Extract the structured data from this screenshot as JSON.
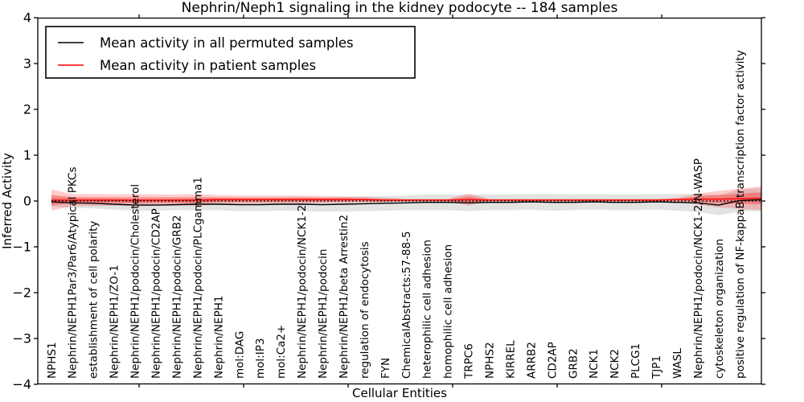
{
  "chart_data": {
    "type": "line",
    "title": "Nephrin/Neph1 signaling in the kidney podocyte -- 184 samples",
    "xlabel": "Cellular Entities",
    "ylabel": "Inferred Activity",
    "ylim": [
      -4,
      4
    ],
    "yticks": [
      -4,
      -3,
      -2,
      -1,
      0,
      1,
      2,
      3,
      4
    ],
    "grid": false,
    "legend_position": "upper-left",
    "legend": [
      "Mean activity in all permuted samples",
      "Mean activity in patient samples"
    ],
    "zero_line": {
      "value": 0,
      "style": "dotted",
      "color": "#000000"
    },
    "categories": [
      "NPHS1",
      "Nephrin/NEPH1Par3/Par6/Atypical PKCs",
      "establishment of cell polarity",
      "Nephrin/NEPH1/ZO-1",
      "Nephrin/NEPH1/podocin/Cholesterol",
      "Nephrin/NEPH1/podocin/CD2AP",
      "Nephrin/NEPH1/podocin/GRB2",
      "Nephrin/NEPH1/podocin/PLCgamma1",
      "Nephrin/NEPH1",
      "mol:DAG",
      "mol:IP3",
      "mol:Ca2+",
      "Nephrin/NEPH1/podocin/NCK1-2",
      "Nephrin/NEPH1/podocin",
      "Nephrin/NEPH1/beta Arrestin2",
      "regulation of endocytosis",
      "FYN",
      "ChemicalAbstracts:57-88-5",
      "heterophilic cell adhesion",
      "homophilic cell adhesion",
      "TRPC6",
      "NPHS2",
      "KIRREL",
      "ARRB2",
      "CD2AP",
      "GRB2",
      "NCK1",
      "NCK2",
      "PLCG1",
      "TJP1",
      "WASL",
      "Nephrin/NEPH1/podocin/NCK1-2/N-WASP",
      "cytoskeleton organization",
      "positive regulation of NF-kappaB transcription factor activity"
    ],
    "series": [
      {
        "name": "Mean activity in all permuted samples",
        "color": "#000000",
        "band_color": "#999999",
        "band_opacity": 0.28,
        "inner_band_scale": 0,
        "values": [
          -0.02,
          -0.04,
          -0.05,
          -0.07,
          -0.09,
          -0.09,
          -0.08,
          -0.07,
          -0.07,
          -0.08,
          -0.08,
          -0.07,
          -0.07,
          -0.08,
          -0.07,
          -0.06,
          -0.05,
          -0.04,
          -0.03,
          -0.03,
          -0.04,
          -0.03,
          -0.03,
          -0.02,
          -0.03,
          -0.03,
          -0.02,
          -0.03,
          -0.03,
          -0.02,
          -0.03,
          -0.04,
          -0.09,
          0.01
        ],
        "band_halfwidth": [
          0.1,
          0.11,
          0.11,
          0.12,
          0.12,
          0.12,
          0.12,
          0.13,
          0.13,
          0.14,
          0.14,
          0.14,
          0.15,
          0.15,
          0.16,
          0.16,
          0.16,
          0.16,
          0.17,
          0.17,
          0.18,
          0.17,
          0.17,
          0.17,
          0.18,
          0.17,
          0.17,
          0.17,
          0.17,
          0.17,
          0.18,
          0.2,
          0.22,
          0.24
        ],
        "edge_extension": {
          "value": 0.03,
          "std": 0.25
        }
      },
      {
        "name": "Mean activity in patient samples",
        "color": "#ff0000",
        "band_color": "#ff0000",
        "band_opacity": 0.2,
        "inner_band_scale": 0.5,
        "inner_band_opacity": 0.3,
        "values": [
          0.02,
          0.02,
          0.02,
          0.02,
          0.02,
          0.02,
          0.02,
          0.02,
          0.03,
          0.03,
          0.03,
          0.03,
          0.03,
          0.03,
          0.03,
          0.03,
          0.02,
          0.02,
          0.02,
          0.02,
          0.03,
          0.02,
          0.02,
          0.02,
          0.02,
          0.02,
          0.02,
          0.02,
          0.02,
          0.02,
          0.03,
          0.04,
          0.04,
          0.05
        ],
        "band_halfwidth": [
          0.23,
          0.13,
          0.13,
          0.12,
          0.13,
          0.12,
          0.12,
          0.13,
          0.1,
          0.09,
          0.09,
          0.09,
          0.09,
          0.08,
          0.07,
          0.06,
          0.05,
          0.03,
          0.03,
          0.03,
          0.13,
          0.03,
          0.03,
          0.03,
          0.03,
          0.03,
          0.03,
          0.03,
          0.03,
          0.03,
          0.04,
          0.12,
          0.18,
          0.22
        ],
        "edge_extension": {
          "value": 0.06,
          "std": 0.26
        }
      }
    ]
  }
}
